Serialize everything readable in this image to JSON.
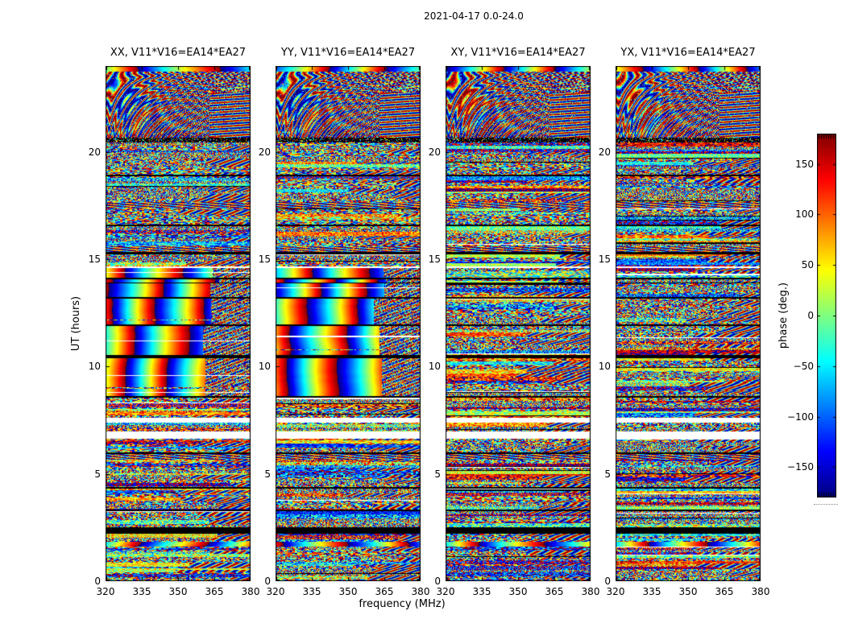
{
  "chart_data": {
    "type": "heatmap",
    "title": "2021-04-17 0.0-24.0",
    "xlabel": "frequency (MHz)",
    "ylabel": "UT (hours)",
    "x_ticks": [
      320,
      335,
      350,
      365,
      380
    ],
    "y_ticks": [
      0,
      5,
      10,
      15,
      20
    ],
    "x_range": [
      320,
      380
    ],
    "y_range": [
      0,
      24
    ],
    "grid": false,
    "panels": [
      {
        "id": "xx",
        "title": "XX, V11*V16=EA14*EA27",
        "mode": "parallel"
      },
      {
        "id": "yy",
        "title": "YY, V11*V16=EA14*EA27",
        "mode": "parallel"
      },
      {
        "id": "xy",
        "title": "XY, V11*V16=EA14*EA27",
        "mode": "cross"
      },
      {
        "id": "yx",
        "title": "YX, V11*V16=EA14*EA27",
        "mode": "cross"
      }
    ],
    "colorbar": {
      "label": "phase (deg.)",
      "ticks": [
        150,
        100,
        50,
        0,
        -50,
        -100,
        -150
      ],
      "tick_labels": [
        "150",
        "100",
        "50",
        "0",
        "−50",
        "−100",
        "−150"
      ],
      "vmin": -180,
      "vmax": 180,
      "colormap": "jet",
      "position": "right"
    },
    "time_structure": [
      [
        24.0,
        23.72,
        "toprow"
      ],
      [
        23.72,
        20.65,
        "fringes"
      ],
      [
        20.65,
        20.42,
        "blackspeckle"
      ],
      [
        20.42,
        18.95,
        "noise"
      ],
      [
        18.95,
        18.87,
        "black"
      ],
      [
        18.87,
        17.65,
        "noise"
      ],
      [
        17.65,
        17.35,
        "hstripes"
      ],
      [
        17.35,
        16.62,
        "noise"
      ],
      [
        16.62,
        16.54,
        "black"
      ],
      [
        16.54,
        15.6,
        "noise"
      ],
      [
        15.6,
        15.32,
        "hstripes"
      ],
      [
        15.32,
        15.24,
        "black"
      ],
      [
        15.24,
        14.65,
        "noise"
      ],
      [
        14.65,
        14.6,
        "white"
      ],
      [
        14.6,
        14.12,
        "smooth"
      ],
      [
        14.12,
        14.06,
        "black"
      ],
      [
        14.06,
        13.92,
        "smooth"
      ],
      [
        13.92,
        13.86,
        "black"
      ],
      [
        13.86,
        13.25,
        "smooth"
      ],
      [
        13.25,
        13.18,
        "black"
      ],
      [
        13.18,
        11.95,
        "smooth"
      ],
      [
        11.95,
        11.88,
        "black"
      ],
      [
        11.88,
        10.52,
        "smooth"
      ],
      [
        10.52,
        10.38,
        "black"
      ],
      [
        10.38,
        8.62,
        "smooth"
      ],
      [
        8.62,
        8.55,
        "black"
      ],
      [
        8.55,
        7.62,
        "noise"
      ],
      [
        7.62,
        7.4,
        "white"
      ],
      [
        7.4,
        6.98,
        "noise"
      ],
      [
        6.98,
        6.62,
        "white"
      ],
      [
        6.62,
        6.0,
        "noise"
      ],
      [
        6.0,
        5.93,
        "black"
      ],
      [
        5.93,
        5.65,
        "hstripes"
      ],
      [
        5.65,
        4.4,
        "noise"
      ],
      [
        4.4,
        4.33,
        "black"
      ],
      [
        4.33,
        3.35,
        "noise"
      ],
      [
        3.35,
        3.28,
        "black"
      ],
      [
        3.28,
        2.5,
        "noise"
      ],
      [
        2.5,
        2.22,
        "blackband"
      ],
      [
        2.22,
        1.85,
        "noise"
      ],
      [
        1.85,
        1.62,
        "toprow"
      ],
      [
        1.62,
        0.0,
        "noise"
      ]
    ]
  },
  "colors": {
    "background": "#ffffff",
    "frame": "#000000",
    "text": "#000000"
  }
}
